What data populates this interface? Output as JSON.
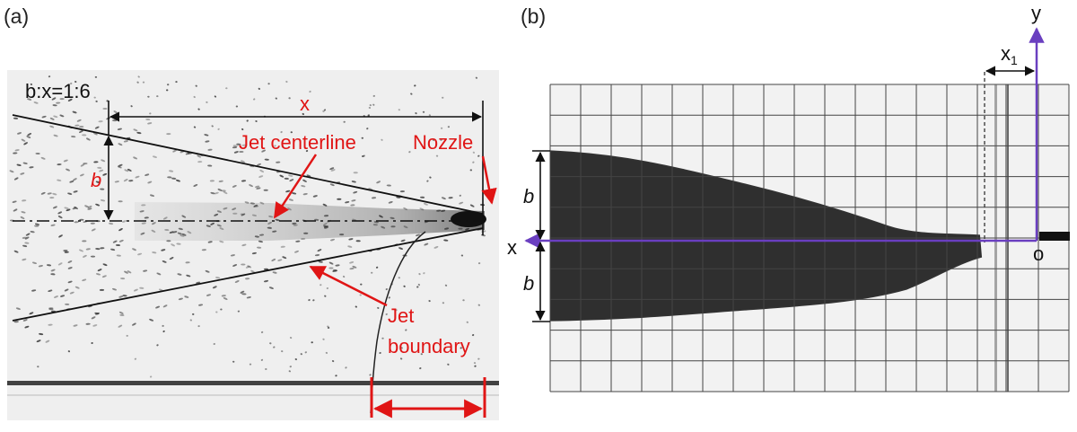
{
  "panel_a": {
    "tag": "(a)",
    "ratio_label": "b:x=1:6",
    "x_label": "x",
    "b_label": "b",
    "centerline_label": "Jet centerline",
    "nozzle_label": "Nozzle",
    "boundary_label_1": "Jet",
    "boundary_label_2": "boundary"
  },
  "panel_b": {
    "tag": "(b)",
    "y_axis_label": "y",
    "x_axis_label": "x",
    "x1_label_main": "x",
    "x1_label_sub": "1",
    "origin_label": "o",
    "b_upper_label": "b",
    "b_lower_label": "b"
  },
  "colors": {
    "annotation_red": "#e01515",
    "axis_purple": "#6a3fc0",
    "image_bg": "#e9e9e9"
  }
}
